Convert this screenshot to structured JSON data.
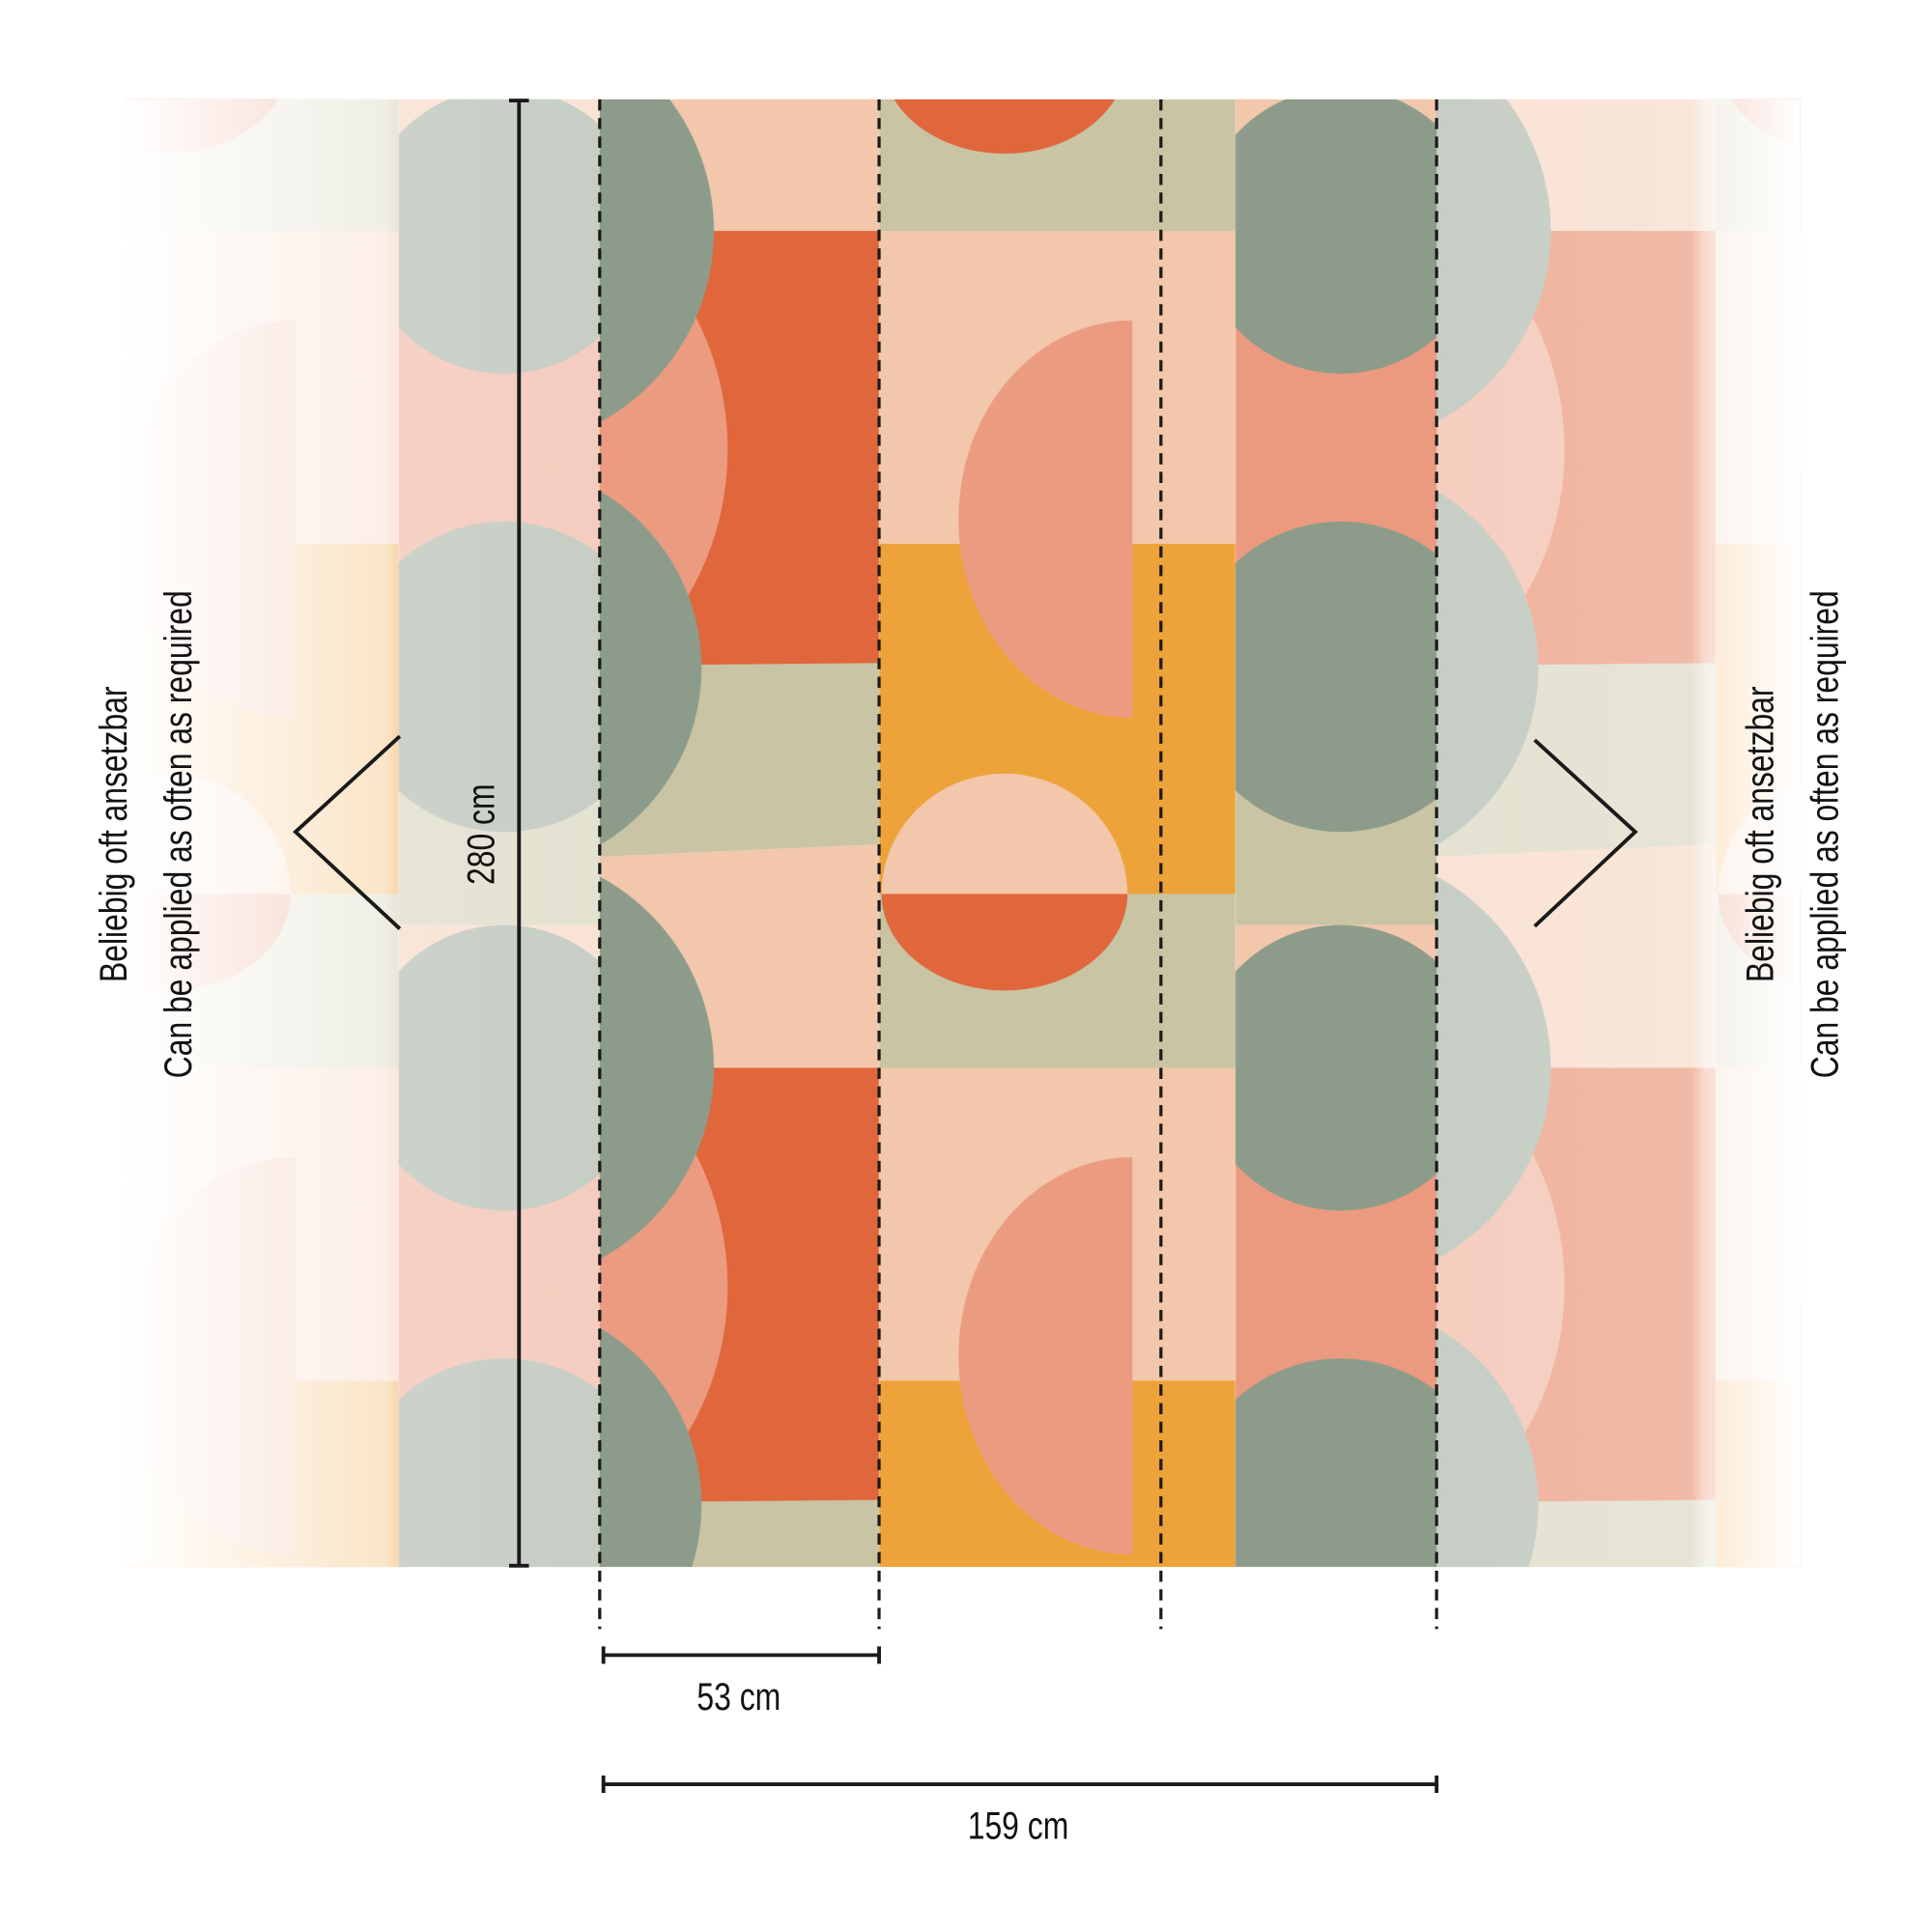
{
  "dimensions": {
    "height_label": "280 cm",
    "panel_width_label": "53 cm",
    "total_width_label": "159 cm"
  },
  "notes": {
    "left": {
      "line1": "Beliebig oft ansetzbar",
      "line2": "Can be applied as often as required"
    },
    "right": {
      "line1": "Beliebig oft ansetzbar",
      "line2": "Can be applied as often as required"
    }
  },
  "icons": {
    "left": "chevron-left-icon",
    "right": "chevron-right-icon"
  },
  "colors": {
    "orange": "#e0663c",
    "salmon": "#eb9c80",
    "peach": "#f2c7ab",
    "sage": "#c9c4a3",
    "teal_gray": "#8d9c8a",
    "amber": "#eea33a",
    "line": "#1a1a1a"
  }
}
